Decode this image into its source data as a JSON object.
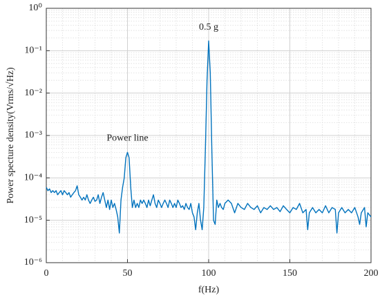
{
  "chart_data": {
    "type": "line",
    "xlabel": "f(Hz)",
    "ylabel": "Power specture density(Vrms/√Hz)",
    "x": [
      0,
      1,
      2,
      3,
      4,
      5,
      6,
      7,
      8,
      9,
      10,
      11,
      12,
      13,
      14,
      15,
      16,
      17,
      18,
      19,
      20,
      21,
      22,
      23,
      24,
      25,
      26,
      27,
      28,
      29,
      30,
      31,
      32,
      33,
      34,
      35,
      36,
      37,
      38,
      39,
      40,
      41,
      42,
      43,
      44,
      45,
      46,
      47,
      48,
      49,
      50,
      51,
      52,
      53,
      54,
      55,
      56,
      57,
      58,
      59,
      60,
      61,
      62,
      63,
      64,
      65,
      66,
      67,
      68,
      69,
      70,
      71,
      72,
      73,
      74,
      75,
      76,
      77,
      78,
      79,
      80,
      81,
      82,
      83,
      84,
      85,
      86,
      87,
      88,
      89,
      90,
      91,
      92,
      93,
      94,
      95,
      96,
      97,
      98,
      99,
      100,
      101,
      102,
      103,
      104,
      105,
      106,
      107,
      108,
      109,
      110,
      112,
      114,
      116,
      118,
      120,
      122,
      124,
      126,
      128,
      130,
      132,
      134,
      136,
      138,
      140,
      142,
      144,
      146,
      148,
      150,
      152,
      154,
      156,
      158,
      160,
      161,
      162,
      164,
      166,
      168,
      170,
      172,
      174,
      176,
      178,
      179,
      180,
      182,
      184,
      186,
      188,
      190,
      192,
      193,
      194,
      196,
      197,
      198,
      200
    ],
    "series": [
      {
        "color": "#0072bd",
        "values": [
          6e-05,
          5e-05,
          5.5e-05,
          4.5e-05,
          5e-05,
          4.5e-05,
          5e-05,
          4e-05,
          4.5e-05,
          5e-05,
          4e-05,
          5e-05,
          4.5e-05,
          4e-05,
          4.5e-05,
          3.5e-05,
          4e-05,
          4.5e-05,
          5e-05,
          6.5e-05,
          4e-05,
          3.5e-05,
          3e-05,
          3.5e-05,
          3e-05,
          4e-05,
          3e-05,
          2.5e-05,
          3e-05,
          3.5e-05,
          2.8e-05,
          3e-05,
          4e-05,
          2.5e-05,
          3.5e-05,
          4.5e-05,
          3e-05,
          2e-05,
          3e-05,
          1.8e-05,
          3e-05,
          2e-05,
          2.5e-05,
          1.8e-05,
          1.2e-05,
          5e-06,
          3e-05,
          6e-05,
          0.0001,
          0.0003,
          0.0004,
          0.0003,
          6e-05,
          2e-05,
          3e-05,
          2e-05,
          2.5e-05,
          2e-05,
          3e-05,
          2.5e-05,
          3e-05,
          2.5e-05,
          2e-05,
          3e-05,
          2.2e-05,
          3e-05,
          4e-05,
          2.5e-05,
          2e-05,
          3e-05,
          2.5e-05,
          2e-05,
          2.5e-05,
          3e-05,
          2.5e-05,
          2e-05,
          3e-05,
          2.5e-05,
          2e-05,
          2.5e-05,
          2e-05,
          3e-05,
          2.5e-05,
          2e-05,
          2.2e-05,
          1.8e-05,
          2.5e-05,
          2e-05,
          1.8e-05,
          2.5e-05,
          1.5e-05,
          1.2e-05,
          6e-06,
          1.5e-05,
          2.5e-05,
          1e-05,
          6e-06,
          2e-05,
          0.0005,
          0.02,
          0.17,
          0.03,
          0.0004,
          1e-05,
          8e-06,
          3e-05,
          2e-05,
          2.5e-05,
          2e-05,
          1.8e-05,
          2.5e-05,
          3e-05,
          2.5e-05,
          1.5e-05,
          2.5e-05,
          2e-05,
          1.8e-05,
          2.5e-05,
          2e-05,
          1.8e-05,
          2.2e-05,
          1.5e-05,
          2e-05,
          1.8e-05,
          2.2e-05,
          1.8e-05,
          2e-05,
          1.6e-05,
          2.2e-05,
          1.8e-05,
          1.5e-05,
          2e-05,
          1.8e-05,
          2.5e-05,
          1.5e-05,
          1.8e-05,
          6e-06,
          1.5e-05,
          2e-05,
          1.5e-05,
          1.8e-05,
          1.5e-05,
          2.2e-05,
          1.5e-05,
          2e-05,
          1.8e-05,
          5e-06,
          1.5e-05,
          2e-05,
          1.5e-05,
          1.8e-05,
          1.5e-05,
          2e-05,
          1.2e-05,
          8e-06,
          1.5e-05,
          2e-05,
          7e-06,
          1.5e-05,
          1.2e-05
        ]
      }
    ],
    "xlim": [
      0,
      200
    ],
    "xticks": [
      0,
      50,
      100,
      150,
      200
    ],
    "ylim": [
      1e-06,
      1
    ],
    "ylog": true,
    "yticks": [
      {
        "value": 1e-06,
        "label": "10⁻⁶"
      },
      {
        "value": 1e-05,
        "label": "10⁻⁵"
      },
      {
        "value": 0.0001,
        "label": "10⁻⁴"
      },
      {
        "value": 0.001,
        "label": "10⁻³"
      },
      {
        "value": 0.01,
        "label": "10⁻²"
      },
      {
        "value": 0.1,
        "label": "10⁻¹"
      },
      {
        "value": 1,
        "label": "10⁰"
      }
    ],
    "grid": true,
    "minor_grid": true,
    "annotations": [
      {
        "text": "0.5 g",
        "x": 100,
        "y": 0.35
      },
      {
        "text": "Power line",
        "x": 50,
        "y": 0.00085
      }
    ]
  }
}
